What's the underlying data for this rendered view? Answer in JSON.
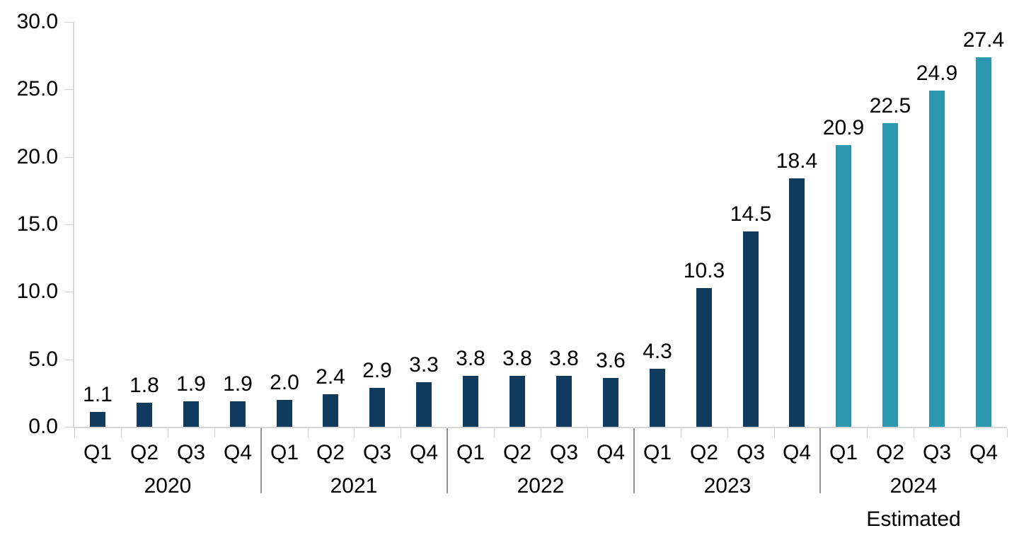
{
  "chart_data": {
    "type": "bar",
    "title": "",
    "xlabel": "",
    "ylabel": "",
    "ylim": [
      0,
      30
    ],
    "yticks": [
      0,
      5,
      10,
      15,
      20,
      25,
      30
    ],
    "ytick_labels": [
      "0.0",
      "5.0",
      "10.0",
      "15.0",
      "20.0",
      "25.0",
      "30.0"
    ],
    "grid": false,
    "legend": false,
    "value_labels_shown": true,
    "colors": {
      "actual_bar": "#113a5f",
      "estimated_bar": "#2b98af",
      "axis": "#d6d6d6",
      "tick": "#cfcfcf",
      "year_separator": "#949494",
      "text": "#000000"
    },
    "groups": [
      {
        "year": "2020",
        "note": "",
        "series": "actual",
        "quarters": [
          "Q1",
          "Q2",
          "Q3",
          "Q4"
        ],
        "values": [
          1.1,
          1.8,
          1.9,
          1.9
        ],
        "labels": [
          "1.1",
          "1.8",
          "1.9",
          "1.9"
        ]
      },
      {
        "year": "2021",
        "note": "",
        "series": "actual",
        "quarters": [
          "Q1",
          "Q2",
          "Q3",
          "Q4"
        ],
        "values": [
          2.0,
          2.4,
          2.9,
          3.3
        ],
        "labels": [
          "2.0",
          "2.4",
          "2.9",
          "3.3"
        ]
      },
      {
        "year": "2022",
        "note": "",
        "series": "actual",
        "quarters": [
          "Q1",
          "Q2",
          "Q3",
          "Q4"
        ],
        "values": [
          3.8,
          3.8,
          3.8,
          3.6
        ],
        "labels": [
          "3.8",
          "3.8",
          "3.8",
          "3.6"
        ]
      },
      {
        "year": "2023",
        "note": "",
        "series": "actual",
        "quarters": [
          "Q1",
          "Q2",
          "Q3",
          "Q4"
        ],
        "values": [
          4.3,
          10.3,
          14.5,
          18.4
        ],
        "labels": [
          "4.3",
          "10.3",
          "14.5",
          "18.4"
        ]
      },
      {
        "year": "2024",
        "note": "Estimated",
        "series": "estimated",
        "quarters": [
          "Q1",
          "Q2",
          "Q3",
          "Q4"
        ],
        "values": [
          20.9,
          22.5,
          24.9,
          27.4
        ],
        "labels": [
          "20.9",
          "22.5",
          "24.9",
          "27.4"
        ]
      }
    ]
  }
}
